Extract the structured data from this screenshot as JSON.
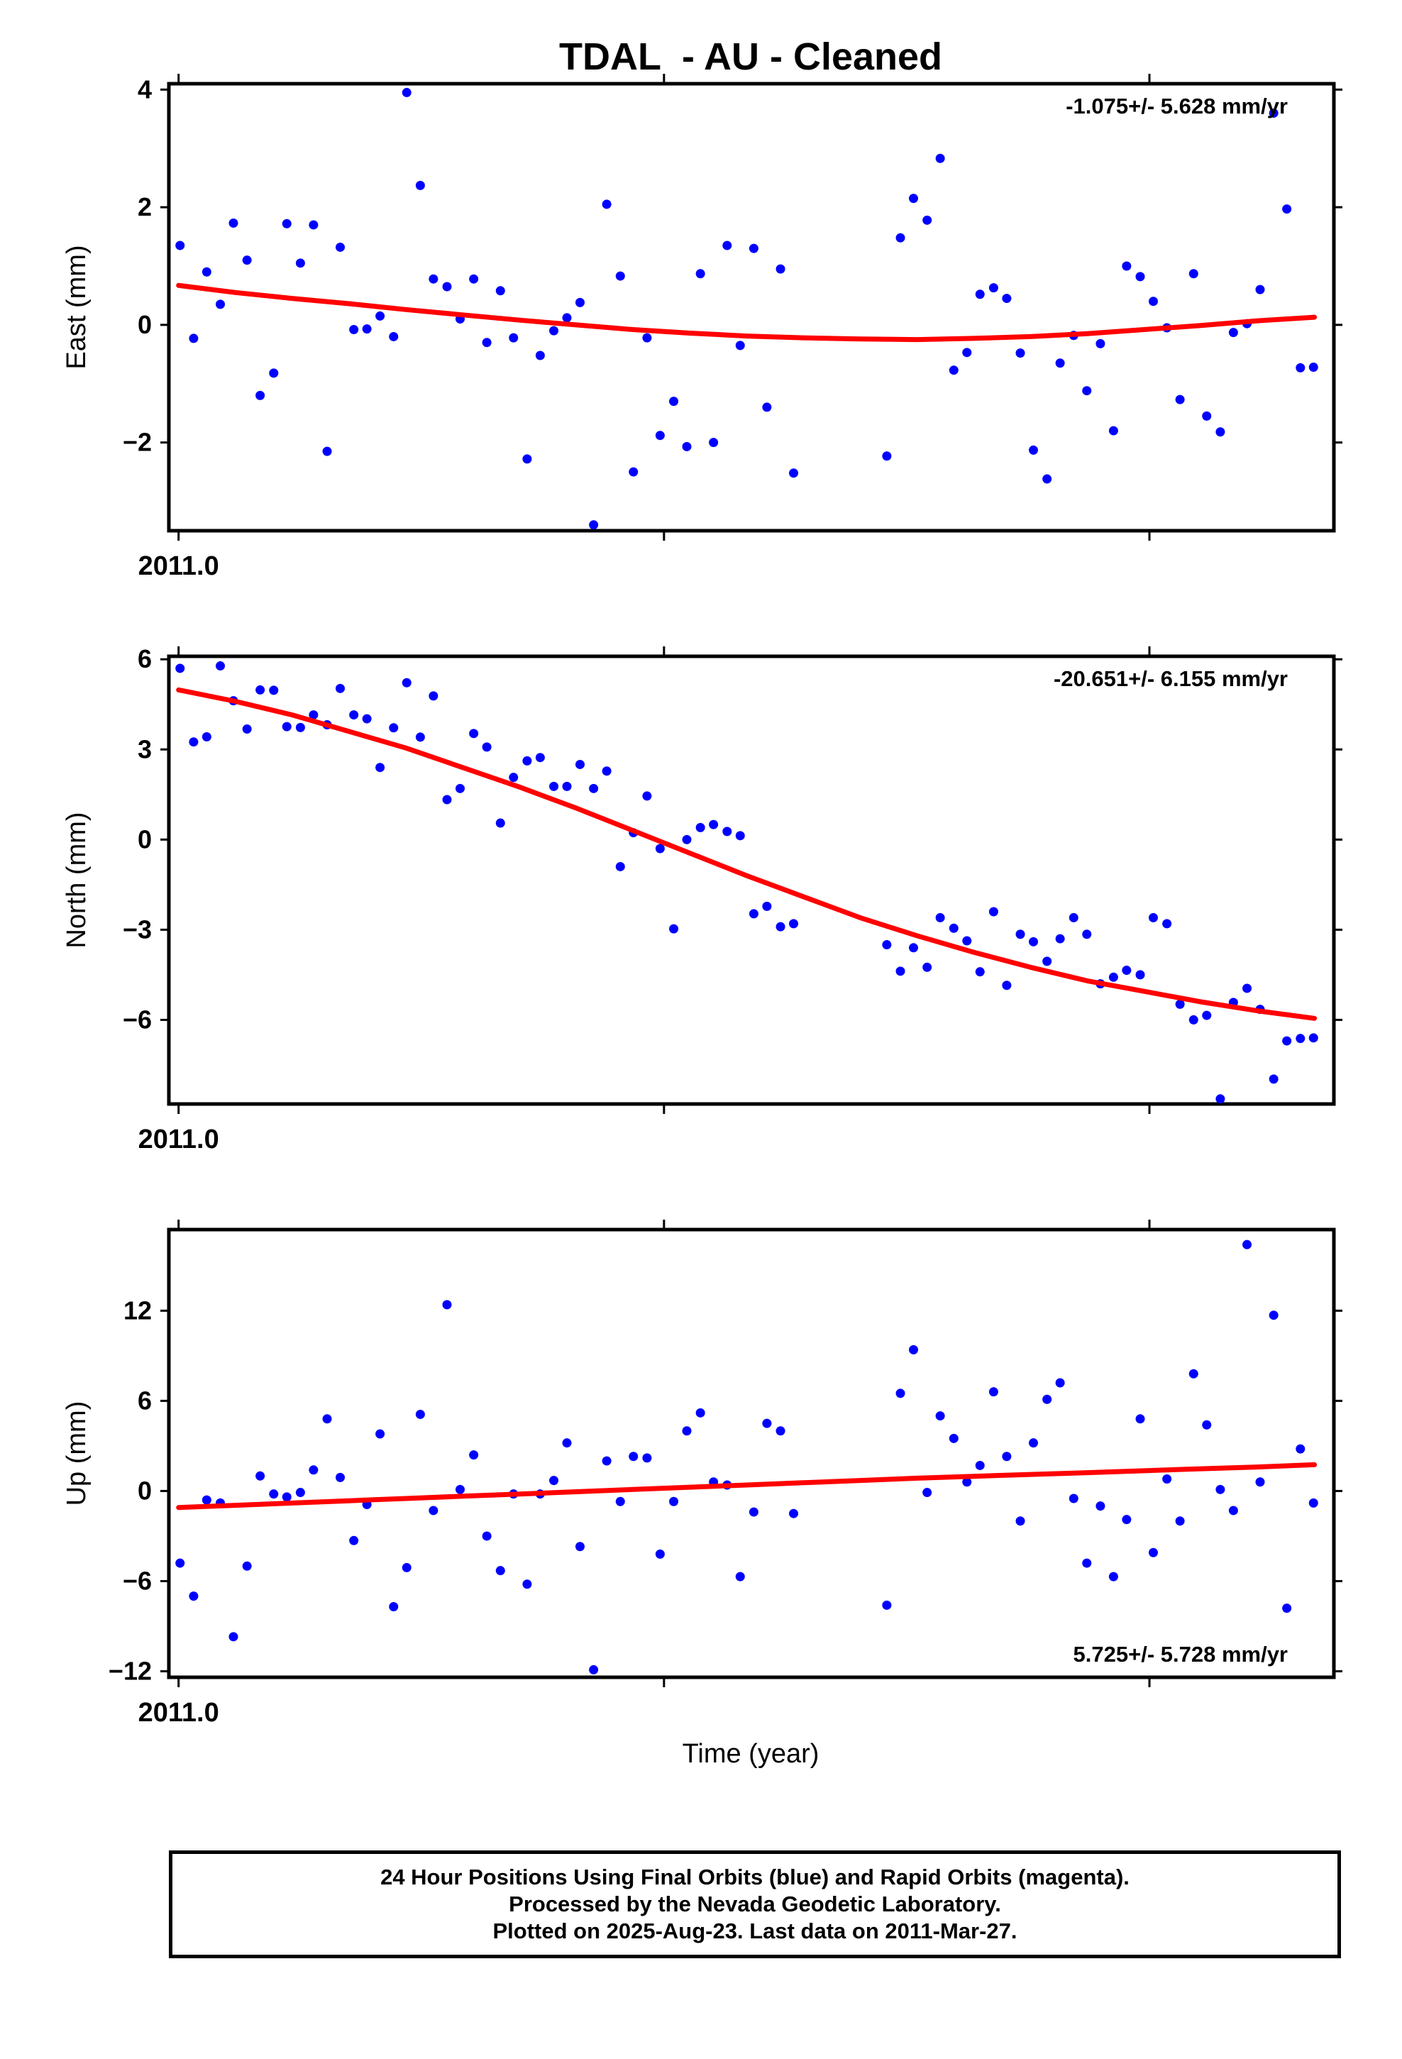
{
  "title": "TDAL  - AU - Cleaned",
  "xlabel": "Time (year)",
  "footer": {
    "line1": "24 Hour Positions Using Final Orbits (blue) and Rapid Orbits (magenta).",
    "line2": "Processed by the Nevada Geodetic Laboratory.",
    "line3": "Plotted on 2025-Aug-23. Last data on 2011-Mar-27."
  },
  "colors": {
    "points": "#0000ff",
    "fit": "#ff0000",
    "axis": "#000000"
  },
  "chart_data": [
    {
      "type": "scatter",
      "ylabel": "East (mm)",
      "rate": "-1.075+/- 5.628 mm/yr",
      "rate_position": "top-right",
      "xlim": [
        2010.998,
        2011.238
      ],
      "ylim": [
        -3.5,
        4.1
      ],
      "yticks": [
        4,
        2,
        0,
        -2
      ],
      "ytick_labels": [
        "4",
        "2",
        "0",
        "−2"
      ],
      "xtick_labels": [
        "2011.0"
      ],
      "x": [
        2011.0003,
        2011.0031,
        2011.0058,
        2011.0086,
        2011.0113,
        2011.0141,
        2011.0168,
        2011.0196,
        2011.0223,
        2011.0251,
        2011.0278,
        2011.0306,
        2011.0333,
        2011.0361,
        2011.0388,
        2011.0415,
        2011.0443,
        2011.047,
        2011.0498,
        2011.0525,
        2011.0553,
        2011.058,
        2011.0608,
        2011.0635,
        2011.0663,
        2011.069,
        2011.0718,
        2011.0745,
        2011.0773,
        2011.08,
        2011.0827,
        2011.0855,
        2011.0882,
        2011.091,
        2011.0937,
        2011.0965,
        2011.0992,
        2011.102,
        2011.1047,
        2011.1075,
        2011.1102,
        2011.113,
        2011.1157,
        2011.1185,
        2011.1212,
        2011.124,
        2011.1267,
        2011.1459,
        2011.1487,
        2011.1514,
        2011.1542,
        2011.1569,
        2011.1597,
        2011.1624,
        2011.1651,
        2011.1679,
        2011.1706,
        2011.1734,
        2011.1761,
        2011.1789,
        2011.1816,
        2011.1844,
        2011.1871,
        2011.1899,
        2011.1926,
        2011.1953,
        2011.1981,
        2011.2008,
        2011.2036,
        2011.2063,
        2011.2091,
        2011.2118,
        2011.2146,
        2011.2173,
        2011.2201,
        2011.2228,
        2011.2256,
        2011.2283,
        2011.2311,
        2011.2338
      ],
      "y": [
        1.35,
        -0.23,
        0.9,
        0.35,
        1.73,
        1.1,
        -1.2,
        -0.82,
        1.72,
        1.05,
        1.7,
        -2.15,
        1.32,
        -0.08,
        -0.07,
        0.15,
        -0.2,
        3.95,
        2.37,
        0.78,
        0.65,
        0.1,
        0.78,
        -0.3,
        0.58,
        -0.22,
        -2.28,
        -0.52,
        -0.1,
        0.12,
        0.38,
        -3.4,
        2.05,
        0.83,
        -2.5,
        -0.22,
        -1.88,
        -1.3,
        -2.07,
        0.87,
        -2.0,
        1.35,
        -0.35,
        1.3,
        -1.4,
        0.95,
        -2.52,
        -2.23,
        1.48,
        2.15,
        1.78,
        2.83,
        -0.77,
        -0.47,
        0.52,
        0.63,
        0.45,
        -0.48,
        -2.13,
        -2.62,
        -0.65,
        -0.18,
        -1.12,
        -0.32,
        -1.8,
        1.0,
        0.82,
        0.4,
        -0.05,
        -1.27,
        0.87,
        -1.55,
        -1.82,
        -0.13,
        0.02,
        0.6,
        3.6,
        1.97,
        -0.73,
        -0.72
      ],
      "fit": {
        "x": [
          2011.0,
          2011.0117,
          2011.0234,
          2011.0351,
          2011.0468,
          2011.0585,
          2011.0702,
          2011.0819,
          2011.0936,
          2011.1053,
          2011.117,
          2011.1287,
          2011.1404,
          2011.1521,
          2011.1638,
          2011.1755,
          2011.1872,
          2011.1989,
          2011.2106,
          2011.2223,
          2011.234
        ],
        "y": [
          0.67,
          0.55,
          0.45,
          0.36,
          0.26,
          0.17,
          0.08,
          0.0,
          -0.08,
          -0.14,
          -0.19,
          -0.22,
          -0.24,
          -0.25,
          -0.23,
          -0.2,
          -0.15,
          -0.08,
          -0.01,
          0.07,
          0.13
        ]
      }
    },
    {
      "type": "scatter",
      "ylabel": "North (mm)",
      "rate": "-20.651+/- 6.155 mm/yr",
      "rate_position": "top-right",
      "xlim": [
        2010.998,
        2011.238
      ],
      "ylim": [
        -8.8,
        6.1
      ],
      "yticks": [
        6,
        3,
        0,
        -3,
        -6
      ],
      "ytick_labels": [
        "6",
        "3",
        "0",
        "−3",
        "−6"
      ],
      "xtick_labels": [
        "2011.0"
      ],
      "x": [
        2011.0003,
        2011.0031,
        2011.0058,
        2011.0086,
        2011.0113,
        2011.0141,
        2011.0168,
        2011.0196,
        2011.0223,
        2011.0251,
        2011.0278,
        2011.0306,
        2011.0333,
        2011.0361,
        2011.0388,
        2011.0415,
        2011.0443,
        2011.047,
        2011.0498,
        2011.0525,
        2011.0553,
        2011.058,
        2011.0608,
        2011.0635,
        2011.0663,
        2011.069,
        2011.0718,
        2011.0745,
        2011.0773,
        2011.08,
        2011.0827,
        2011.0855,
        2011.0882,
        2011.091,
        2011.0937,
        2011.0965,
        2011.0992,
        2011.102,
        2011.1047,
        2011.1075,
        2011.1102,
        2011.113,
        2011.1157,
        2011.1185,
        2011.1212,
        2011.124,
        2011.1267,
        2011.1459,
        2011.1487,
        2011.1514,
        2011.1542,
        2011.1569,
        2011.1597,
        2011.1624,
        2011.1651,
        2011.1679,
        2011.1706,
        2011.1734,
        2011.1761,
        2011.1789,
        2011.1816,
        2011.1844,
        2011.1871,
        2011.1899,
        2011.1926,
        2011.1953,
        2011.1981,
        2011.2008,
        2011.2036,
        2011.2063,
        2011.2091,
        2011.2118,
        2011.2146,
        2011.2173,
        2011.2201,
        2011.2228,
        2011.2256,
        2011.2283,
        2011.2311,
        2011.2338
      ],
      "y": [
        5.7,
        3.25,
        3.42,
        5.78,
        4.62,
        3.68,
        4.98,
        4.97,
        3.76,
        3.73,
        4.15,
        3.82,
        5.03,
        4.15,
        4.02,
        2.4,
        3.72,
        5.22,
        3.41,
        4.78,
        1.33,
        1.7,
        3.53,
        3.08,
        0.55,
        2.07,
        2.62,
        2.73,
        1.77,
        1.77,
        2.5,
        1.7,
        2.28,
        -0.9,
        0.23,
        1.45,
        -0.3,
        -2.97,
        0.0,
        0.4,
        0.5,
        0.27,
        0.13,
        -2.47,
        -2.22,
        -2.9,
        -2.8,
        -3.5,
        -4.38,
        -3.6,
        -4.25,
        -2.6,
        -2.95,
        -3.37,
        -4.4,
        -2.4,
        -4.85,
        -3.15,
        -3.4,
        -4.05,
        -3.3,
        -2.6,
        -3.15,
        -4.8,
        -4.58,
        -4.35,
        -4.5,
        -2.6,
        -2.8,
        -5.48,
        -6.0,
        -5.85,
        -8.63,
        -5.42,
        -4.95,
        -5.65,
        -7.97,
        -6.7,
        -6.62,
        -6.6
      ],
      "fit": {
        "x": [
          2011.0,
          2011.0117,
          2011.0234,
          2011.0351,
          2011.0468,
          2011.0585,
          2011.0702,
          2011.0819,
          2011.0936,
          2011.1053,
          2011.117,
          2011.1287,
          2011.1404,
          2011.1521,
          2011.1638,
          2011.1755,
          2011.1872,
          2011.1989,
          2011.2106,
          2011.2223,
          2011.234
        ],
        "y": [
          4.98,
          4.6,
          4.15,
          3.6,
          3.05,
          2.4,
          1.75,
          1.05,
          0.3,
          -0.45,
          -1.2,
          -1.9,
          -2.6,
          -3.2,
          -3.75,
          -4.25,
          -4.7,
          -5.05,
          -5.4,
          -5.7,
          -5.95
        ]
      }
    },
    {
      "type": "scatter",
      "ylabel": "Up (mm)",
      "rate": "5.725+/- 5.728 mm/yr",
      "rate_position": "bottom-right",
      "xlim": [
        2010.998,
        2011.238
      ],
      "ylim": [
        -12.4,
        17.4
      ],
      "yticks": [
        12,
        6,
        0,
        -6,
        -12
      ],
      "ytick_labels": [
        "12",
        "6",
        "0",
        "−6",
        "−12"
      ],
      "xtick_labels": [
        "2011.0"
      ],
      "x": [
        2011.0003,
        2011.0031,
        2011.0058,
        2011.0086,
        2011.0113,
        2011.0141,
        2011.0168,
        2011.0196,
        2011.0223,
        2011.0251,
        2011.0278,
        2011.0306,
        2011.0333,
        2011.0361,
        2011.0388,
        2011.0415,
        2011.0443,
        2011.047,
        2011.0498,
        2011.0525,
        2011.0553,
        2011.058,
        2011.0608,
        2011.0635,
        2011.0663,
        2011.069,
        2011.0718,
        2011.0745,
        2011.0773,
        2011.08,
        2011.0827,
        2011.0855,
        2011.0882,
        2011.091,
        2011.0937,
        2011.0965,
        2011.0992,
        2011.102,
        2011.1047,
        2011.1075,
        2011.1102,
        2011.113,
        2011.1157,
        2011.1185,
        2011.1212,
        2011.124,
        2011.1267,
        2011.1459,
        2011.1487,
        2011.1514,
        2011.1542,
        2011.1569,
        2011.1597,
        2011.1624,
        2011.1651,
        2011.1679,
        2011.1706,
        2011.1734,
        2011.1761,
        2011.1789,
        2011.1816,
        2011.1844,
        2011.1871,
        2011.1899,
        2011.1926,
        2011.1953,
        2011.1981,
        2011.2008,
        2011.2036,
        2011.2063,
        2011.2091,
        2011.2118,
        2011.2146,
        2011.2173,
        2011.2201,
        2011.2228,
        2011.2256,
        2011.2283,
        2011.2311,
        2011.2338
      ],
      "y": [
        -4.8,
        -7.0,
        -0.6,
        -0.8,
        -9.7,
        -5.0,
        1.0,
        -0.2,
        -0.4,
        -0.1,
        1.4,
        4.8,
        0.9,
        -3.3,
        -0.9,
        3.8,
        -7.7,
        -5.1,
        5.1,
        -1.3,
        12.4,
        0.1,
        2.4,
        -3.0,
        -5.3,
        -0.2,
        -6.2,
        -0.2,
        0.7,
        3.2,
        -3.7,
        -11.9,
        2.0,
        -0.7,
        2.3,
        2.2,
        -4.2,
        -0.7,
        4.0,
        5.2,
        0.6,
        0.4,
        -5.7,
        -1.4,
        4.5,
        4.0,
        -1.5,
        -7.6,
        6.5,
        9.4,
        -0.1,
        5.0,
        3.5,
        0.6,
        1.7,
        6.6,
        2.3,
        -2.0,
        3.2,
        6.1,
        7.2,
        -0.5,
        -4.8,
        -1.0,
        -5.7,
        -1.9,
        4.8,
        -4.1,
        0.8,
        -2.0,
        7.8,
        4.4,
        0.1,
        -1.3,
        16.4,
        0.6,
        11.7,
        -7.8,
        2.8,
        -0.8
      ],
      "fit": {
        "x": [
          2011.0,
          2011.0117,
          2011.0234,
          2011.0351,
          2011.0468,
          2011.0585,
          2011.0702,
          2011.0819,
          2011.0936,
          2011.1053,
          2011.117,
          2011.1287,
          2011.1404,
          2011.1521,
          2011.1638,
          2011.1755,
          2011.1872,
          2011.1989,
          2011.2106,
          2011.2223,
          2011.234
        ],
        "y": [
          -1.1,
          -0.95,
          -0.8,
          -0.65,
          -0.5,
          -0.35,
          -0.2,
          -0.05,
          0.1,
          0.25,
          0.4,
          0.55,
          0.7,
          0.85,
          0.98,
          1.1,
          1.22,
          1.35,
          1.48,
          1.6,
          1.75
        ]
      }
    }
  ]
}
